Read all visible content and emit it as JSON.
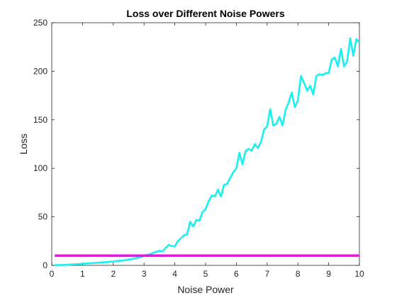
{
  "chart_data": {
    "type": "line",
    "title": "Loss over Different Noise Powers",
    "xlabel": "Noise Power",
    "ylabel": "Loss",
    "xlim": [
      0,
      10
    ],
    "ylim": [
      0,
      250
    ],
    "xticks": [
      0,
      1,
      2,
      3,
      4,
      5,
      6,
      7,
      8,
      9,
      10
    ],
    "yticks": [
      0,
      50,
      100,
      150,
      200,
      250
    ],
    "grid": false,
    "legend": "none",
    "series": [
      {
        "color": "#19F0F0",
        "x": [
          0.1,
          0.2,
          0.3,
          0.4,
          0.5,
          0.6,
          0.7,
          0.8,
          0.9,
          1.0,
          1.1,
          1.2,
          1.3,
          1.4,
          1.5,
          1.6,
          1.7,
          1.8,
          1.9,
          2.0,
          2.1,
          2.2,
          2.3,
          2.4,
          2.5,
          2.6,
          2.7,
          2.8,
          2.9,
          3.0,
          3.1,
          3.2,
          3.3,
          3.4,
          3.5,
          3.6,
          3.7,
          3.8,
          3.9,
          4.0,
          4.1,
          4.2,
          4.3,
          4.4,
          4.5,
          4.6,
          4.7,
          4.8,
          4.9,
          5.0,
          5.1,
          5.2,
          5.3,
          5.4,
          5.5,
          5.6,
          5.7,
          5.8,
          5.9,
          6.0,
          6.1,
          6.2,
          6.3,
          6.4,
          6.5,
          6.6,
          6.7,
          6.8,
          6.9,
          7.0,
          7.1,
          7.2,
          7.3,
          7.4,
          7.5,
          7.6,
          7.7,
          7.8,
          7.9,
          8.0,
          8.1,
          8.2,
          8.3,
          8.4,
          8.5,
          8.6,
          8.7,
          8.8,
          8.9,
          9.0,
          9.1,
          9.2,
          9.3,
          9.4,
          9.5,
          9.6,
          9.7,
          9.8,
          9.9,
          10.0
        ],
        "y": [
          0.2,
          0.3,
          0.4,
          0.5,
          0.6,
          0.8,
          1.0,
          1.2,
          1.4,
          1.7,
          1.9,
          2.1,
          2.3,
          2.5,
          2.7,
          3.0,
          3.2,
          3.4,
          3.6,
          4.0,
          4.3,
          4.7,
          5.0,
          5.5,
          6.0,
          6.5,
          7.0,
          8.0,
          8.5,
          10.0,
          11.0,
          11.5,
          13.0,
          14.0,
          15.0,
          14.5,
          18.0,
          21.0,
          20.0,
          19.5,
          25.0,
          28.0,
          31.0,
          32.0,
          45.0,
          40.0,
          47.0,
          46.0,
          55.0,
          58.0,
          66.0,
          72.0,
          71.0,
          78.0,
          71.0,
          83.0,
          84.0,
          90.0,
          96.0,
          100.0,
          116.0,
          104.0,
          118.0,
          120.0,
          118.0,
          125.0,
          121.0,
          127.0,
          140.0,
          143.0,
          161.0,
          144.0,
          146.0,
          153.0,
          144.0,
          160.0,
          168.0,
          178.0,
          163.0,
          170.0,
          195.0,
          188.0,
          180.0,
          185.0,
          176.0,
          195.0,
          197.0,
          196.0,
          198.0,
          198.0,
          212.0,
          214.0,
          205.0,
          223.0,
          205.0,
          210.0,
          234.0,
          216.0,
          233.0,
          230.0
        ]
      },
      {
        "color": "#F010F0",
        "x": [
          0.1,
          10.0
        ],
        "y": [
          10,
          10
        ]
      }
    ]
  }
}
